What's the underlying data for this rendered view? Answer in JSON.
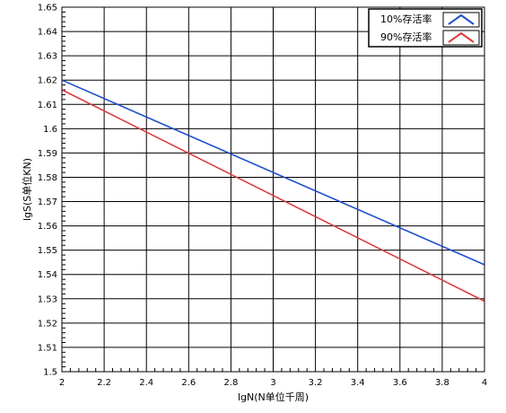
{
  "chart_data": {
    "type": "line",
    "title": "",
    "xlabel": "lgN(N单位千周)",
    "ylabel": "lgS(S单位KN)",
    "xlim": [
      2,
      4
    ],
    "ylim": [
      1.5,
      1.65
    ],
    "x_ticks": [
      "2",
      "2.2",
      "2.4",
      "2.6",
      "2.8",
      "3",
      "3.2",
      "3.4",
      "3.6",
      "3.8",
      "4"
    ],
    "y_ticks": [
      "1.5",
      "1.51",
      "1.52",
      "1.53",
      "1.54",
      "1.55",
      "1.56",
      "1.57",
      "1.58",
      "1.59",
      "1.6",
      "1.61",
      "1.62",
      "1.63",
      "1.64",
      "1.65"
    ],
    "grid": true,
    "legend_position": "top-right",
    "series": [
      {
        "name": "10%存活率",
        "color": "#1f4fcf",
        "x": [
          2,
          4
        ],
        "y": [
          1.62,
          1.544
        ]
      },
      {
        "name": "90%存活率",
        "color": "#e23a3a",
        "x": [
          2,
          4
        ],
        "y": [
          1.616,
          1.529
        ]
      }
    ]
  }
}
